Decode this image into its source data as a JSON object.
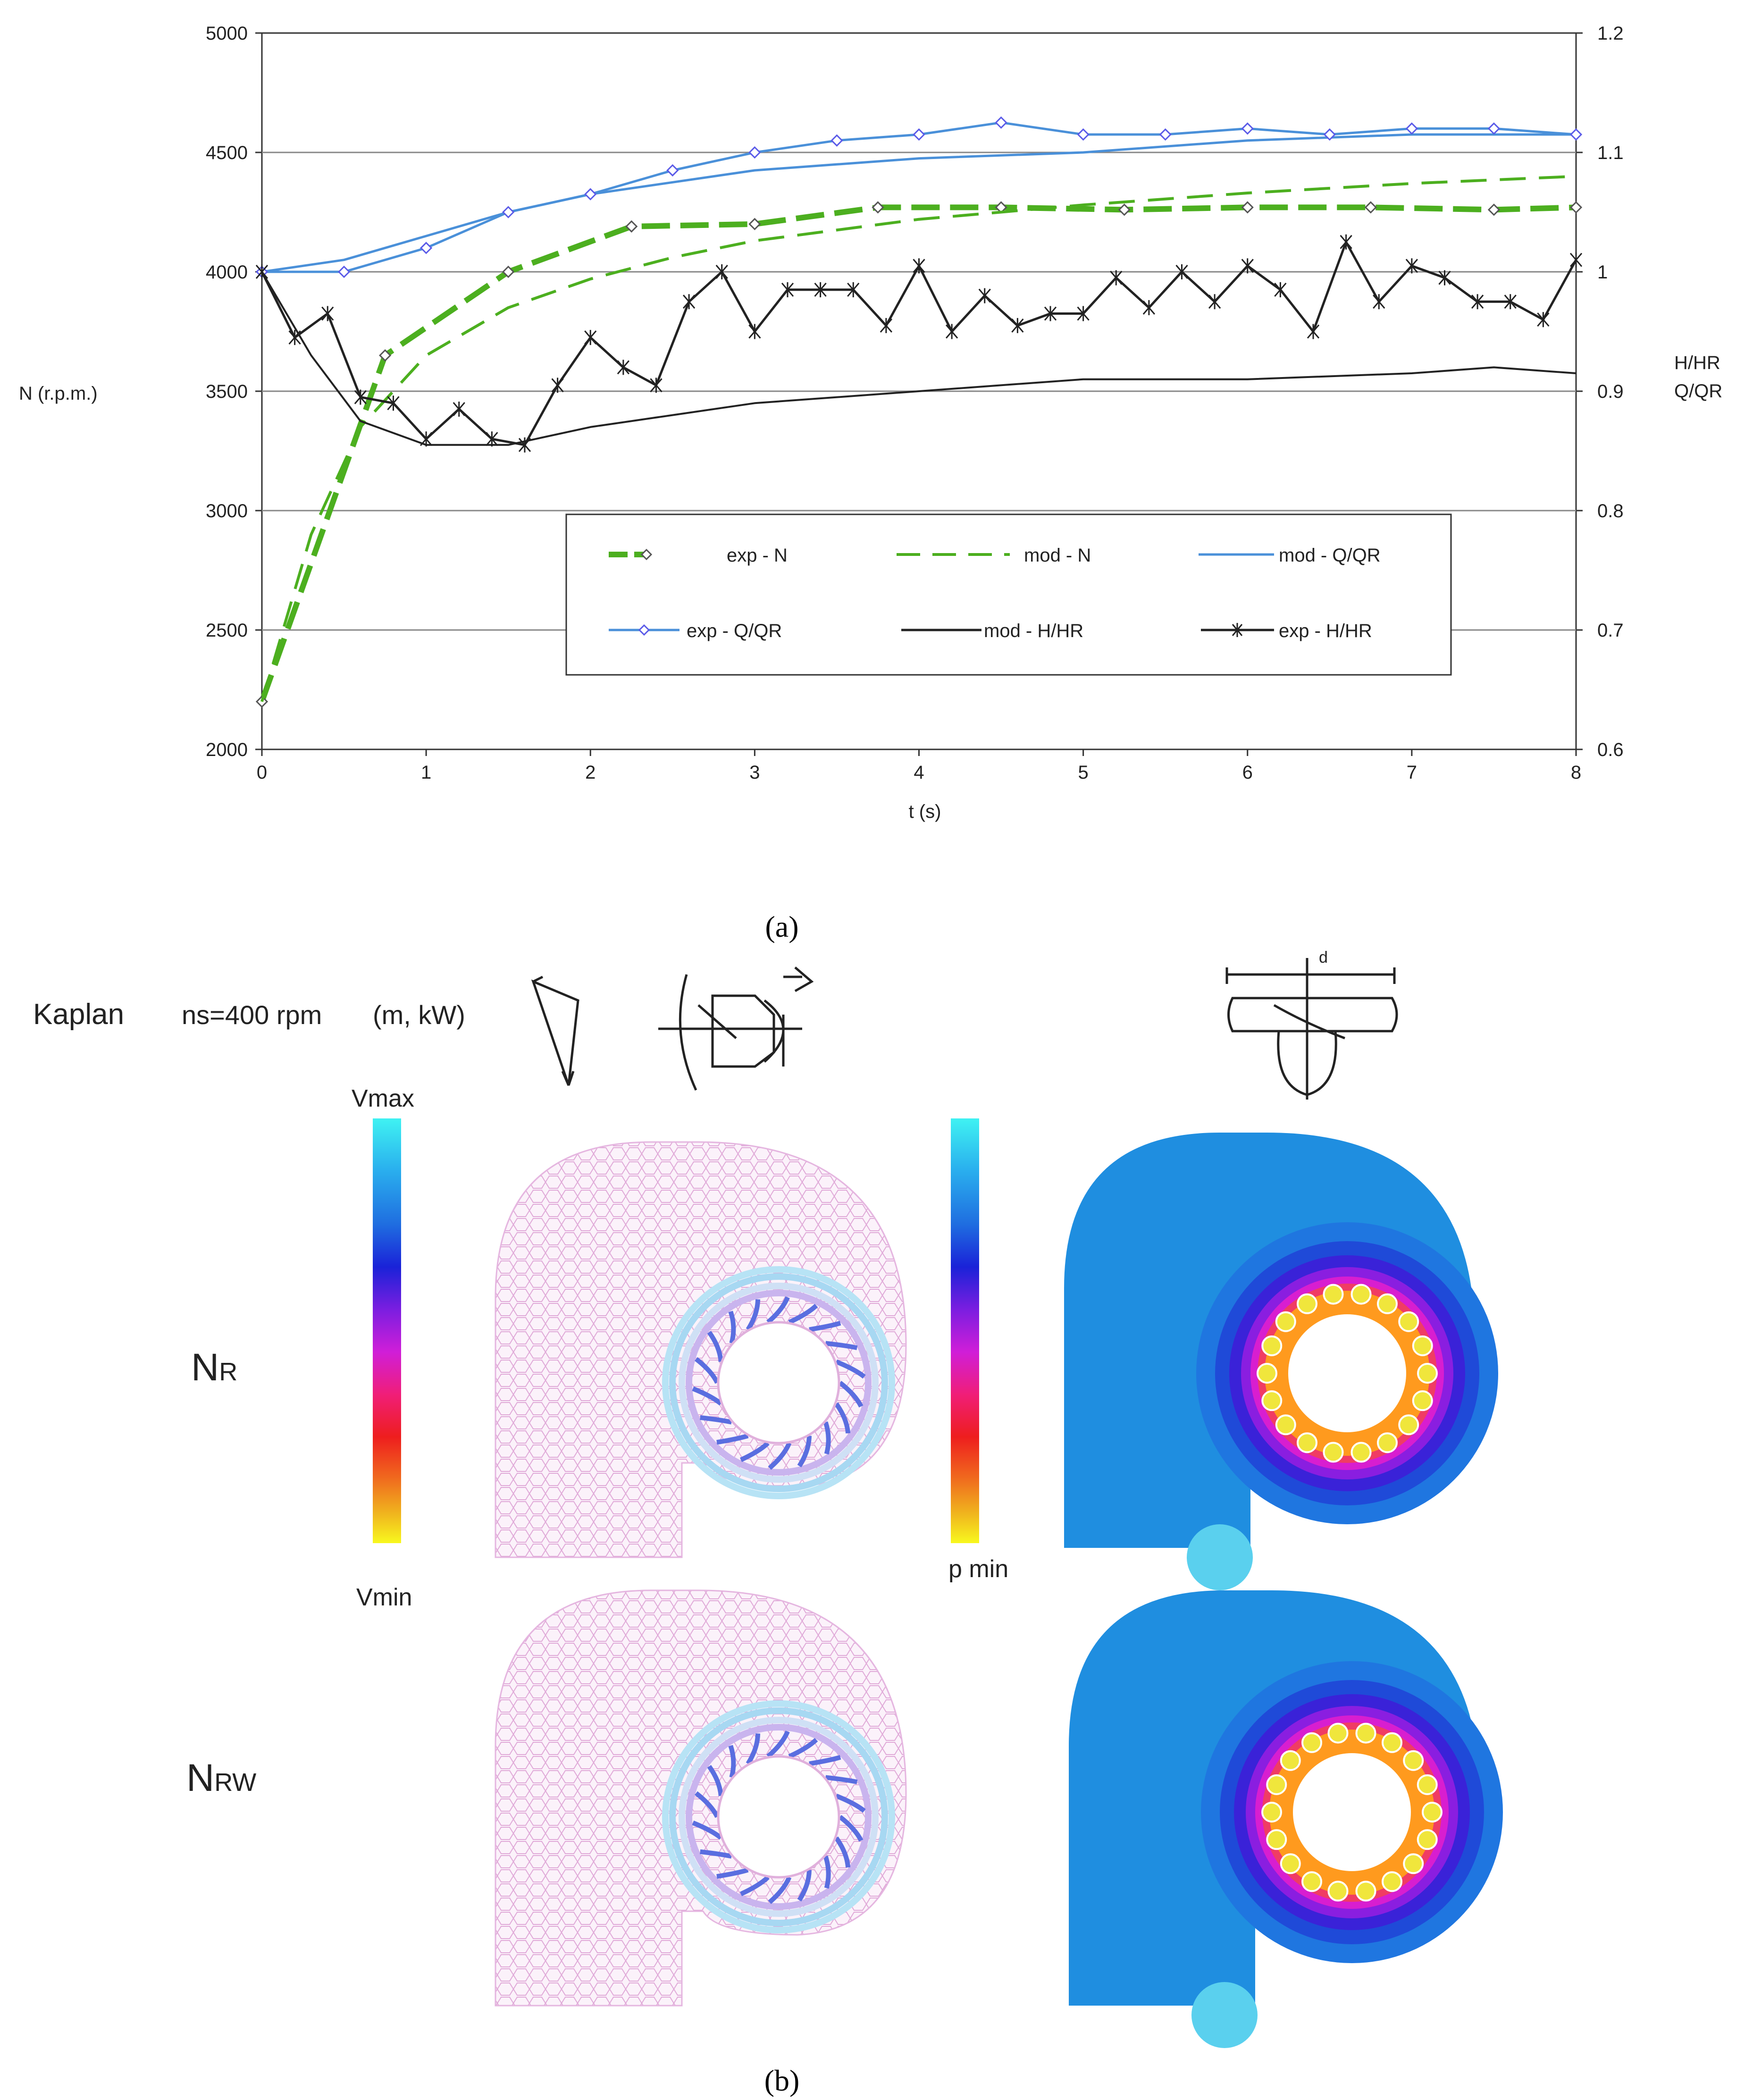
{
  "chart_data": {
    "type": "line",
    "xlabel": "t (s)",
    "ylabel_left": "N (r.p.m.)",
    "ylabel_right_top": "H/HR",
    "ylabel_right_bottom": "Q/QR",
    "xlim": [
      0,
      8
    ],
    "ylim_left": [
      2000,
      5000
    ],
    "ylim_right": [
      0.6,
      1.2
    ],
    "x_ticks": [
      "0",
      "1",
      "2",
      "3",
      "4",
      "5",
      "6",
      "7",
      "8"
    ],
    "y_ticks_left": [
      "2000",
      "2500",
      "3000",
      "3500",
      "4000",
      "4500",
      "5000"
    ],
    "y_ticks_right": [
      "0.6",
      "0.7",
      "0.8",
      "0.9",
      "1",
      "1.1",
      "1.2"
    ],
    "grid": "horizontal",
    "series": [
      {
        "name": "exp - N",
        "axis": "left",
        "color": "#4caf1f",
        "style": "bold-dash-marker",
        "x": [
          0,
          0.75,
          1.5,
          2.25,
          3,
          3.75,
          4.5,
          5.25,
          6,
          6.75,
          7.5,
          8
        ],
        "y": [
          2200,
          3650,
          4000,
          4190,
          4200,
          4270,
          4270,
          4260,
          4270,
          4270,
          4260,
          4270
        ]
      },
      {
        "name": "mod - N",
        "axis": "left",
        "color": "#4caf1f",
        "style": "dash",
        "x": [
          0,
          0.3,
          0.6,
          1,
          1.5,
          2,
          2.5,
          3,
          4,
          5,
          6,
          7,
          8
        ],
        "y": [
          2200,
          2900,
          3350,
          3650,
          3850,
          3970,
          4060,
          4130,
          4220,
          4280,
          4330,
          4370,
          4400
        ]
      },
      {
        "name": "mod - Q/QR",
        "axis": "right",
        "color": "#4a90d9",
        "style": "line",
        "x": [
          0,
          0.5,
          1,
          1.5,
          2,
          2.5,
          3,
          3.5,
          4,
          5,
          6,
          7,
          8
        ],
        "y": [
          1.0,
          1.01,
          1.03,
          1.05,
          1.065,
          1.075,
          1.085,
          1.09,
          1.095,
          1.1,
          1.11,
          1.115,
          1.115
        ]
      },
      {
        "name": "exp - Q/QR",
        "axis": "right",
        "color": "#4a90d9",
        "style": "line-diamond",
        "x": [
          0,
          0.5,
          1,
          1.5,
          2,
          2.5,
          3,
          3.5,
          4,
          4.5,
          5,
          5.5,
          6,
          6.5,
          7,
          7.5,
          8
        ],
        "y": [
          1.0,
          1.0,
          1.02,
          1.05,
          1.065,
          1.085,
          1.1,
          1.11,
          1.115,
          1.125,
          1.115,
          1.115,
          1.12,
          1.115,
          1.12,
          1.12,
          1.115
        ]
      },
      {
        "name": "mod - H/HR",
        "axis": "right",
        "color": "#222222",
        "style": "line",
        "x": [
          0,
          0.3,
          0.6,
          1,
          1.5,
          2,
          2.5,
          3,
          4,
          5,
          6,
          7,
          7.5,
          8
        ],
        "y": [
          1.0,
          0.93,
          0.875,
          0.855,
          0.855,
          0.87,
          0.88,
          0.89,
          0.9,
          0.91,
          0.91,
          0.915,
          0.92,
          0.915
        ]
      },
      {
        "name": "exp - H/HR",
        "axis": "right",
        "color": "#222222",
        "style": "line-star",
        "x": [
          0,
          0.2,
          0.4,
          0.6,
          0.8,
          1,
          1.2,
          1.4,
          1.6,
          1.8,
          2,
          2.2,
          2.4,
          2.6,
          2.8,
          3,
          3.2,
          3.4,
          3.6,
          3.8,
          4,
          4.2,
          4.4,
          4.6,
          4.8,
          5,
          5.2,
          5.4,
          5.6,
          5.8,
          6,
          6.2,
          6.4,
          6.6,
          6.8,
          7,
          7.2,
          7.4,
          7.6,
          7.8,
          8
        ],
        "y": [
          1.0,
          0.945,
          0.965,
          0.895,
          0.89,
          0.86,
          0.885,
          0.86,
          0.855,
          0.905,
          0.945,
          0.92,
          0.905,
          0.975,
          1.0,
          0.95,
          0.985,
          0.985,
          0.985,
          0.955,
          1.005,
          0.95,
          0.98,
          0.955,
          0.965,
          0.965,
          0.995,
          0.97,
          1.0,
          0.975,
          1.005,
          0.985,
          0.95,
          1.025,
          0.975,
          1.005,
          0.995,
          0.975,
          0.975,
          0.96,
          1.01
        ]
      }
    ],
    "legend": {
      "placement": "bottom-center",
      "entries": [
        "exp - N",
        "mod - N",
        "mod - Q/QR",
        "exp - Q/QR",
        "mod - H/HR",
        "exp - H/HR"
      ]
    }
  },
  "figure": {
    "label_a": "(a)",
    "label_b": "(b)",
    "kaplan_title": "Kaplan",
    "kaplan_ns": "ns=400 rpm",
    "kaplan_units": "(m, kW)",
    "sketch_d_label": "d",
    "vmax_label": "Vmax",
    "vmin_label": "Vmin",
    "pmin_label": "p min",
    "row1_label_main": "N",
    "row1_label_sub": "R",
    "row2_label_main": "N",
    "row2_label_sub": "RW",
    "colors": {
      "volute_blue": "#1f8ee0",
      "mesh_pink": "#f3d6ef",
      "ring_orange": "#ff9a1e"
    }
  }
}
